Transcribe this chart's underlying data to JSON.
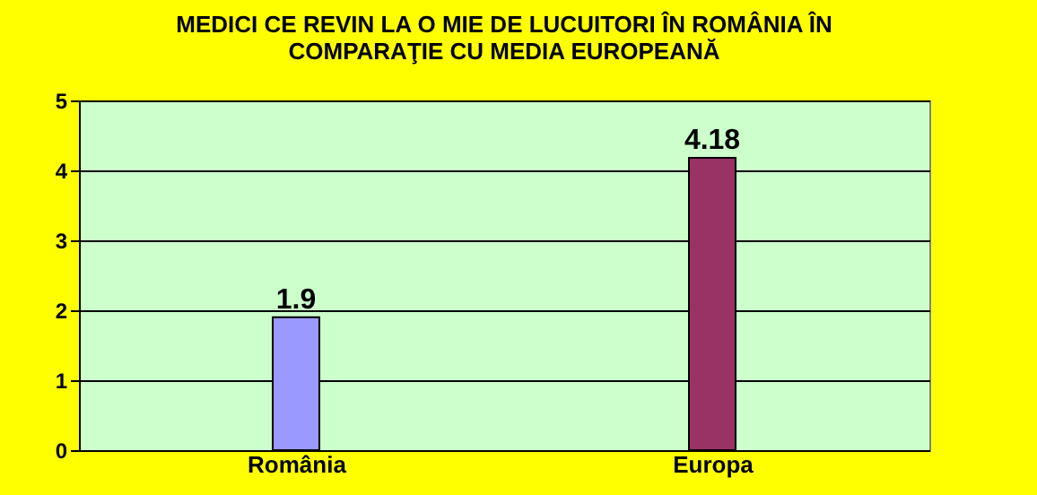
{
  "chart_data": {
    "type": "bar",
    "title": "MEDICI CE REVIN LA O MIE DE LUCUITORI ÎN ROMÂNIA ÎN\nCOMPARAŢIE CU MEDIA EUROPEANĂ",
    "categories": [
      "România",
      "Europa"
    ],
    "values": [
      1.9,
      4.18
    ],
    "colors": [
      "#9999ff",
      "#993366"
    ],
    "ylim": [
      0,
      5
    ],
    "yticks": [
      0,
      1,
      2,
      3,
      4,
      5
    ],
    "grid": "y",
    "data_labels": true
  }
}
